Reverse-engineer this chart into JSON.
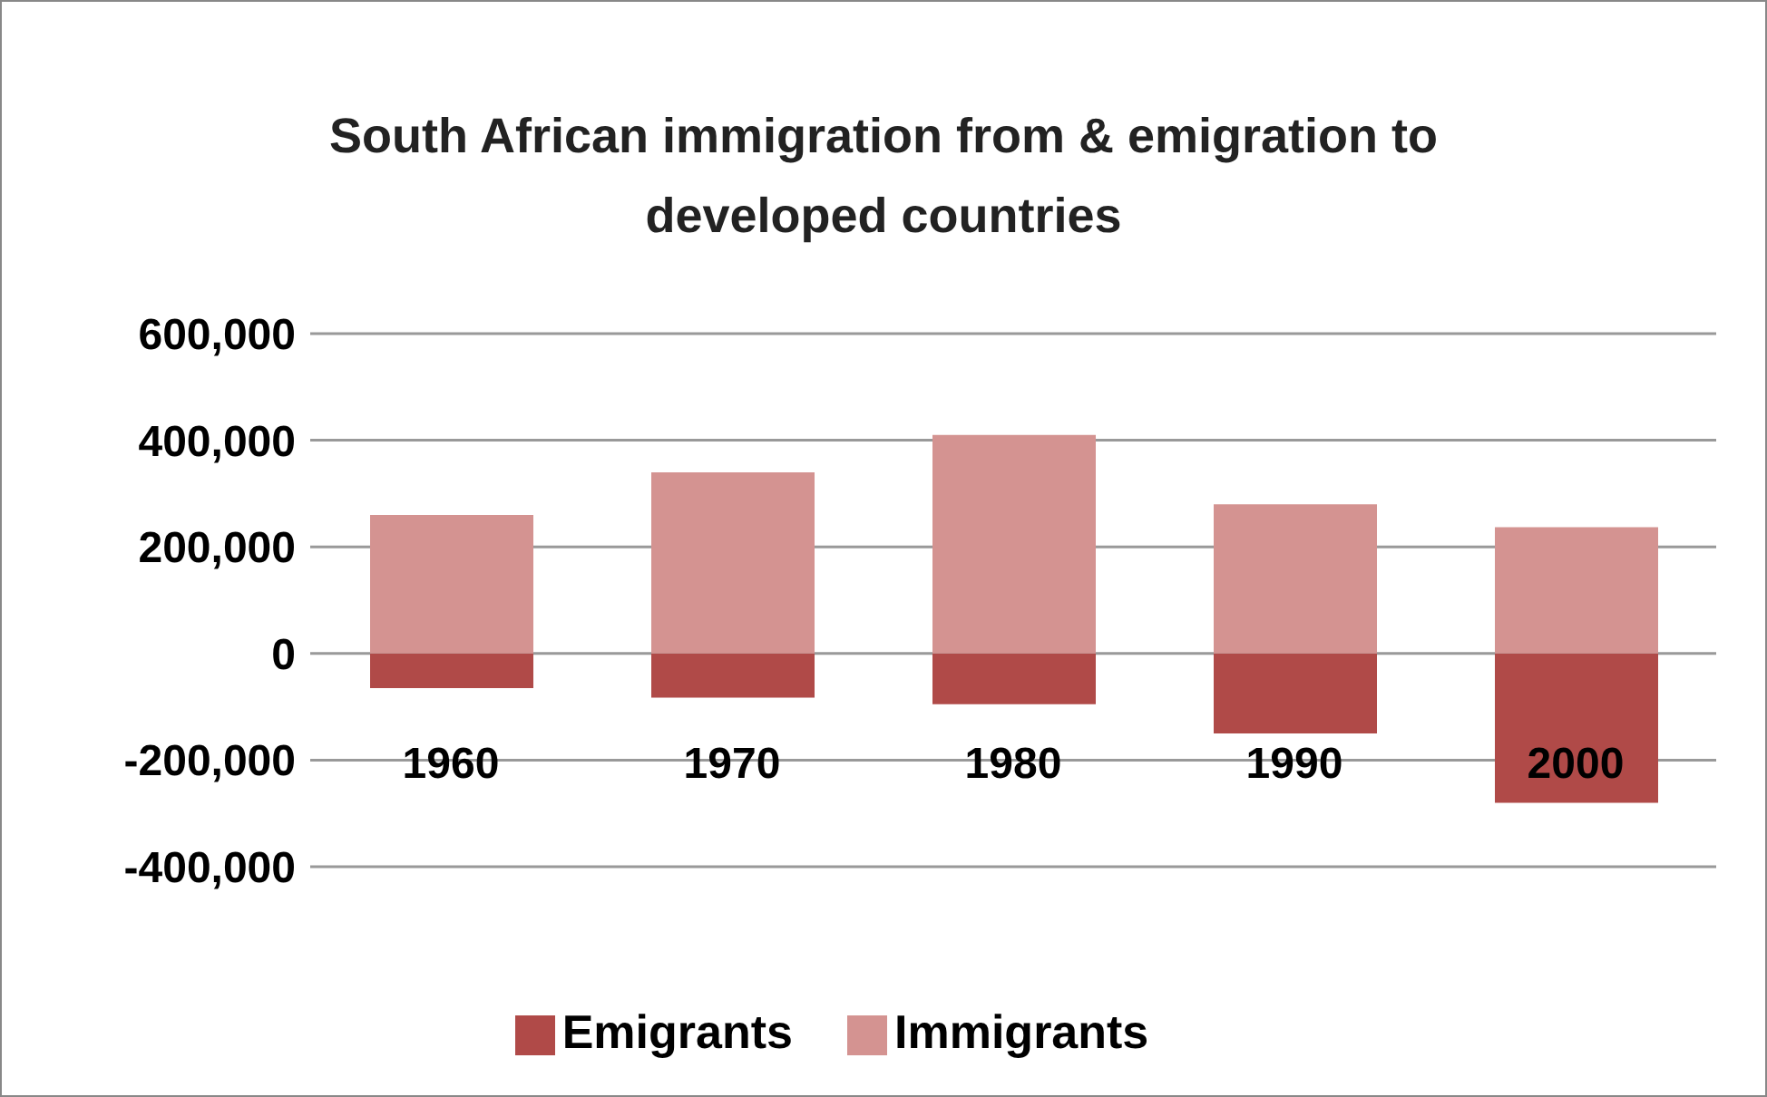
{
  "chart_data": {
    "type": "bar",
    "title": "South African immigration from & emigration to developed countries",
    "categories": [
      "1960",
      "1970",
      "1980",
      "1990",
      "2000"
    ],
    "stacked": true,
    "series": [
      {
        "name": "Emigrants",
        "color": "#b04a48",
        "values": [
          -65000,
          -83000,
          -95000,
          -150000,
          -280000
        ]
      },
      {
        "name": "Immigrants",
        "color": "#d49391",
        "values": [
          260000,
          340000,
          410000,
          280000,
          237000
        ]
      }
    ],
    "ylim": [
      -400000,
      600000
    ],
    "yticks": [
      {
        "value": -400000,
        "label": "-400,000"
      },
      {
        "value": -200000,
        "label": "-200,000"
      },
      0,
      {
        "value": 200000,
        "label": "200,000"
      },
      {
        "value": 400000,
        "label": "400,000"
      },
      {
        "value": 600000,
        "label": "600,000"
      }
    ],
    "grid": "y",
    "legend": "bottom"
  }
}
